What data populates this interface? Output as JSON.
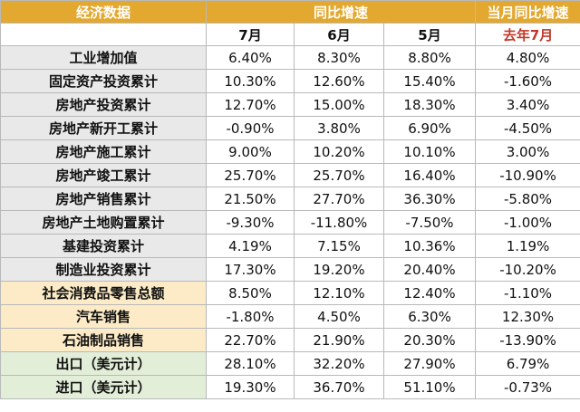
{
  "header": {
    "col0": "经济数据",
    "yoy_group": "同比增速",
    "month_yoy": "当月同比增速",
    "months": [
      "7月",
      "6月",
      "5月"
    ],
    "last_year": "去年7月"
  },
  "rows": [
    {
      "label": "工业增加值",
      "values": [
        "6.40%",
        "8.30%",
        "8.80%",
        "4.80%"
      ],
      "group": 1
    },
    {
      "label": "固定资产投资累计",
      "values": [
        "10.30%",
        "12.60%",
        "15.40%",
        "-1.60%"
      ],
      "group": 1
    },
    {
      "label": "房地产投资累计",
      "values": [
        "12.70%",
        "15.00%",
        "18.30%",
        "3.40%"
      ],
      "group": 1
    },
    {
      "label": "房地产新开工累计",
      "values": [
        "-0.90%",
        "3.80%",
        "6.90%",
        "-4.50%"
      ],
      "group": 1
    },
    {
      "label": "房地产施工累计",
      "values": [
        "9.00%",
        "10.20%",
        "10.10%",
        "3.00%"
      ],
      "group": 1
    },
    {
      "label": "房地产竣工累计",
      "values": [
        "25.70%",
        "25.70%",
        "16.40%",
        "-10.90%"
      ],
      "group": 1
    },
    {
      "label": "房地产销售累计",
      "values": [
        "21.50%",
        "27.70%",
        "36.30%",
        "-5.80%"
      ],
      "group": 1
    },
    {
      "label": "房地产土地购置累计",
      "values": [
        "-9.30%",
        "-11.80%",
        "-7.50%",
        "-1.00%"
      ],
      "group": 1
    },
    {
      "label": "基建投资累计",
      "values": [
        "4.19%",
        "7.15%",
        "10.36%",
        "1.19%"
      ],
      "group": 1
    },
    {
      "label": "制造业投资累计",
      "values": [
        "17.30%",
        "19.20%",
        "20.40%",
        "-10.20%"
      ],
      "group": 1
    },
    {
      "label": "社会消费品零售总额",
      "values": [
        "8.50%",
        "12.10%",
        "12.40%",
        "-1.10%"
      ],
      "group": 2
    },
    {
      "label": "汽车销售",
      "values": [
        "-1.80%",
        "4.50%",
        "6.30%",
        "12.30%"
      ],
      "group": 2
    },
    {
      "label": "石油制品销售",
      "values": [
        "22.70%",
        "21.90%",
        "20.30%",
        "-13.90%"
      ],
      "group": 2
    },
    {
      "label": "出口（美元计）",
      "values": [
        "28.10%",
        "32.20%",
        "27.90%",
        "6.79%"
      ],
      "group": 3
    },
    {
      "label": "进口（美元计）",
      "values": [
        "19.30%",
        "36.70%",
        "51.10%",
        "-0.73%"
      ],
      "group": 3
    }
  ]
}
